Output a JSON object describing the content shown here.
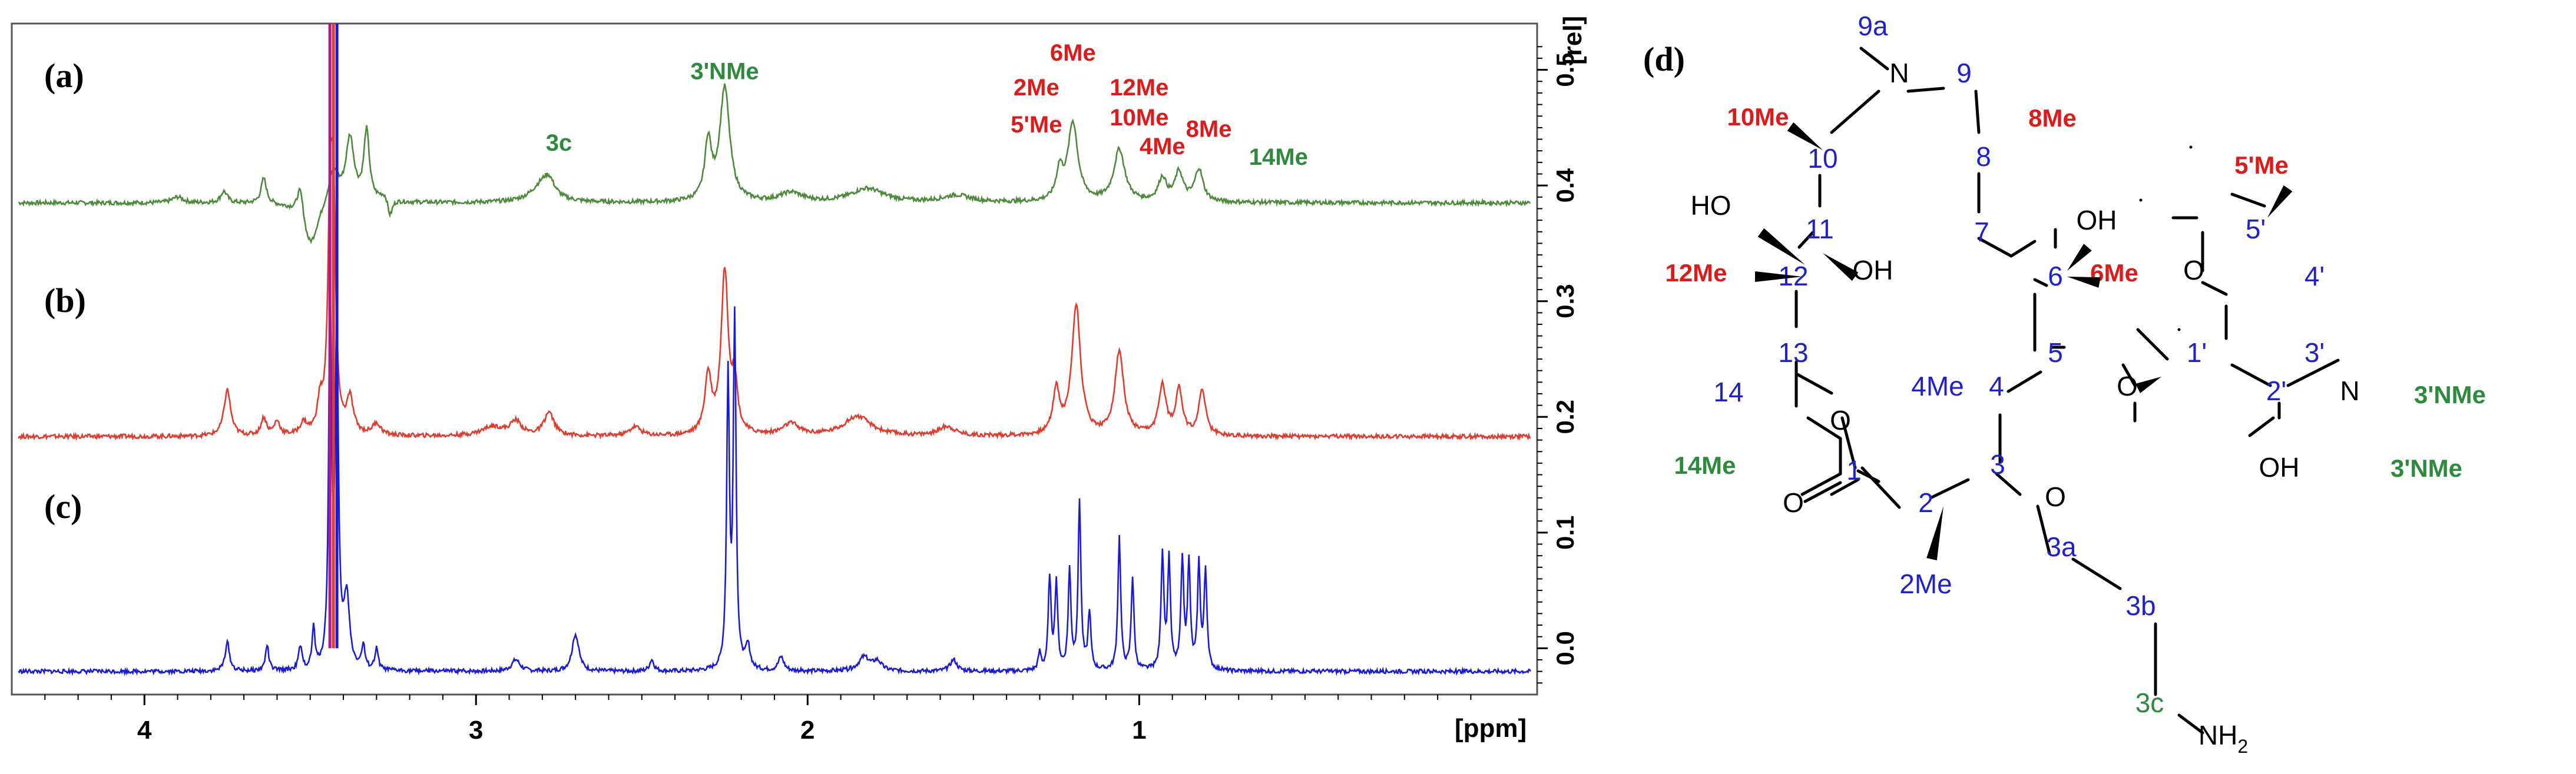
{
  "chart_data": {
    "type": "line",
    "xlabel": "[ppm]",
    "ylabel": "[rel]",
    "xlim": [
      4.4,
      -0.2
    ],
    "ylim": [
      -0.04,
      0.54
    ],
    "xticks": [
      4,
      3,
      2,
      1
    ],
    "yticks": [
      0.5,
      0.4,
      0.3,
      0.2,
      0.1,
      0.0
    ],
    "ytick_labels": [
      "0.5",
      "0.4",
      "0.3",
      "0.2",
      "0.1",
      "0.0"
    ],
    "panels": [
      {
        "id": "a",
        "label": "(a)"
      },
      {
        "id": "b",
        "label": "(b)"
      },
      {
        "id": "c",
        "label": "(c)"
      },
      {
        "id": "d",
        "label": "(d)"
      }
    ],
    "series": [
      {
        "name": "(a)",
        "color": "#4e8a3c",
        "baseline": 0.385,
        "peaks": [
          [
            3.9,
            0.005,
            0.02
          ],
          [
            3.76,
            0.01,
            0.012
          ],
          [
            3.64,
            0.022,
            0.01
          ],
          [
            3.53,
            0.028,
            0.012
          ],
          [
            3.43,
            0.03,
            0.02
          ],
          [
            3.38,
            0.055,
            0.015
          ],
          [
            3.33,
            0.06,
            0.01
          ],
          [
            3.27,
            0.01,
            0.02
          ],
          [
            2.8,
            0.015,
            0.04
          ],
          [
            2.78,
            0.012,
            0.02
          ],
          [
            2.3,
            0.05,
            0.012
          ],
          [
            2.25,
            0.098,
            0.018
          ],
          [
            2.05,
            0.008,
            0.04
          ],
          [
            1.82,
            0.012,
            0.06
          ],
          [
            1.55,
            0.006,
            0.05
          ],
          [
            1.24,
            0.025,
            0.012
          ],
          [
            1.2,
            0.068,
            0.018
          ],
          [
            1.06,
            0.045,
            0.02
          ],
          [
            0.93,
            0.02,
            0.015
          ],
          [
            0.88,
            0.025,
            0.015
          ],
          [
            0.82,
            0.028,
            0.015
          ]
        ],
        "dips": [
          [
            3.5,
            -0.04,
            0.03
          ],
          [
            3.26,
            -0.02,
            0.01
          ]
        ]
      },
      {
        "name": "(b)",
        "color": "#e23b2e",
        "baseline": 0.183,
        "peaks": [
          [
            3.75,
            0.04,
            0.012
          ],
          [
            3.64,
            0.015,
            0.01
          ],
          [
            3.6,
            0.012,
            0.01
          ],
          [
            3.52,
            0.01,
            0.012
          ],
          [
            3.47,
            0.025,
            0.01
          ],
          [
            3.44,
            0.18,
            0.008
          ],
          [
            3.43,
            0.17,
            0.008
          ],
          [
            3.38,
            0.03,
            0.012
          ],
          [
            3.3,
            0.01,
            0.015
          ],
          [
            2.95,
            0.008,
            0.04
          ],
          [
            2.88,
            0.012,
            0.02
          ],
          [
            2.78,
            0.02,
            0.018
          ],
          [
            2.52,
            0.008,
            0.02
          ],
          [
            2.3,
            0.05,
            0.012
          ],
          [
            2.25,
            0.14,
            0.013
          ],
          [
            2.22,
            0.04,
            0.01
          ],
          [
            2.05,
            0.01,
            0.03
          ],
          [
            1.85,
            0.017,
            0.05
          ],
          [
            1.58,
            0.008,
            0.03
          ],
          [
            1.25,
            0.038,
            0.012
          ],
          [
            1.19,
            0.112,
            0.016
          ],
          [
            1.06,
            0.072,
            0.016
          ],
          [
            0.93,
            0.043,
            0.013
          ],
          [
            0.88,
            0.04,
            0.012
          ],
          [
            0.81,
            0.04,
            0.012
          ]
        ],
        "dips": []
      },
      {
        "name": "(c)",
        "color": "#1a1adb",
        "baseline": -0.02,
        "peaks": [
          [
            3.75,
            0.025,
            0.008
          ],
          [
            3.63,
            0.022,
            0.006
          ],
          [
            3.53,
            0.02,
            0.006
          ],
          [
            3.49,
            0.035,
            0.005
          ],
          [
            3.44,
            0.32,
            0.005
          ],
          [
            3.42,
            0.29,
            0.006
          ],
          [
            3.39,
            0.06,
            0.01
          ],
          [
            3.34,
            0.02,
            0.006
          ],
          [
            3.3,
            0.018,
            0.006
          ],
          [
            2.88,
            0.01,
            0.015
          ],
          [
            2.7,
            0.032,
            0.012
          ],
          [
            2.47,
            0.01,
            0.008
          ],
          [
            2.24,
            0.25,
            0.005
          ],
          [
            2.22,
            0.3,
            0.005
          ],
          [
            2.18,
            0.02,
            0.008
          ],
          [
            2.08,
            0.012,
            0.01
          ],
          [
            1.83,
            0.012,
            0.02
          ],
          [
            1.79,
            0.008,
            0.015
          ],
          [
            1.56,
            0.01,
            0.012
          ],
          [
            1.3,
            0.015,
            0.005
          ],
          [
            1.27,
            0.08,
            0.005
          ],
          [
            1.25,
            0.075,
            0.005
          ],
          [
            1.21,
            0.085,
            0.005
          ],
          [
            1.18,
            0.145,
            0.005
          ],
          [
            1.15,
            0.05,
            0.005
          ],
          [
            1.06,
            0.115,
            0.005
          ],
          [
            1.02,
            0.08,
            0.005
          ],
          [
            0.93,
            0.1,
            0.005
          ],
          [
            0.91,
            0.095,
            0.005
          ],
          [
            0.87,
            0.095,
            0.005
          ],
          [
            0.85,
            0.09,
            0.005
          ],
          [
            0.82,
            0.09,
            0.005
          ],
          [
            0.8,
            0.085,
            0.005
          ]
        ],
        "dips": []
      }
    ],
    "water_peak": {
      "ppm": 3.43,
      "colors": [
        "#b0178f",
        "#e23b2e",
        "#1a1adb"
      ]
    },
    "annotations": [
      {
        "text": "3'NMe",
        "ppm": 2.25,
        "y": 0.492,
        "color": "#2e8b3e"
      },
      {
        "text": "3c",
        "ppm": 2.75,
        "y": 0.43,
        "color": "#2e8b3e"
      },
      {
        "text": "6Me",
        "ppm": 1.2,
        "y": 0.508,
        "color": "#dd1b1b"
      },
      {
        "text": "2Me",
        "ppm": 1.31,
        "y": 0.478,
        "color": "#dd1b1b"
      },
      {
        "text": "12Me",
        "ppm": 1.0,
        "y": 0.478,
        "color": "#dd1b1b"
      },
      {
        "text": "5'Me",
        "ppm": 1.31,
        "y": 0.446,
        "color": "#dd1b1b"
      },
      {
        "text": "10Me",
        "ppm": 1.0,
        "y": 0.452,
        "color": "#dd1b1b"
      },
      {
        "text": "4Me",
        "ppm": 0.93,
        "y": 0.427,
        "color": "#dd1b1b"
      },
      {
        "text": "8Me",
        "ppm": 0.79,
        "y": 0.442,
        "color": "#dd1b1b"
      },
      {
        "text": "14Me",
        "ppm": 0.58,
        "y": 0.418,
        "color": "#2e8b3e"
      }
    ]
  },
  "molecule": {
    "atoms": {
      "n9": "N",
      "c9a": "9a",
      "c9": "9",
      "c10": "10",
      "c8": "8",
      "c11": "11",
      "c7": "7",
      "c12": "12",
      "c6": "6",
      "c13": "13",
      "c5": "5",
      "c4": "4",
      "c14": "14",
      "c3": "3",
      "c2": "2",
      "c1": "1",
      "o_ring": "O",
      "o_carbonyl": "O",
      "o_ether": "O",
      "o_glyc": "O",
      "c3a": "3a",
      "c3b": "3b",
      "c3c": "3c",
      "nh2": "NH",
      "nh2_sub": "2",
      "c1p": "1'",
      "c2p": "2'",
      "c3p": "3'",
      "c4p": "4'",
      "c5p": "5'",
      "o_ring_p": "O",
      "n3p": "N",
      "oh2p": "OH",
      "oh6": "OH",
      "oh11": "OH",
      "ho12": "HO",
      "me4": "4Me",
      "me2": "2Me"
    },
    "labels": {
      "me10": "10Me",
      "me8": "8Me",
      "me12": "12Me",
      "me6": "6Me",
      "me5p": "5'Me",
      "me14": "14Me",
      "nme3p_a": "3'NMe",
      "nme3p_b": "3'NMe"
    },
    "colors": {
      "atom": "#2020d0",
      "red": "#dd1b1b",
      "green": "#2e8b3e",
      "bond": "#000000"
    }
  }
}
